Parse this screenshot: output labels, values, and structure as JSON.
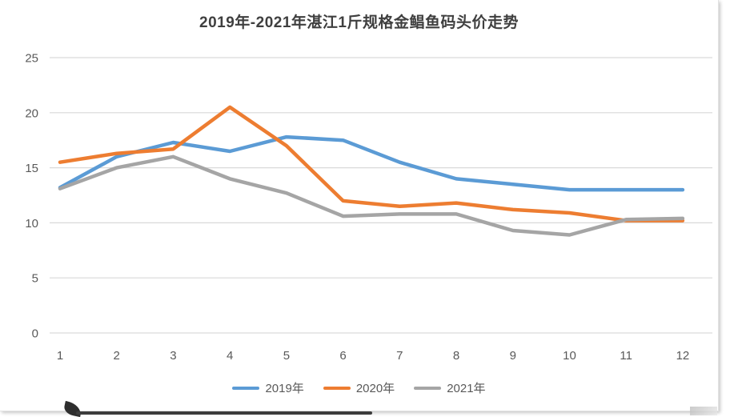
{
  "chart_data": {
    "type": "line",
    "title": "2019年-2021年湛江1斤规格金鲳鱼码头价走势",
    "xlabel": "",
    "ylabel": "",
    "x": [
      "1",
      "2",
      "3",
      "4",
      "5",
      "6",
      "7",
      "8",
      "9",
      "10",
      "11",
      "12"
    ],
    "yticks": [
      "0",
      "5",
      "10",
      "15",
      "20",
      "25"
    ],
    "ylim": [
      0,
      25
    ],
    "grid": "horizontal-only",
    "legend_position": "bottom",
    "series": [
      {
        "name": "2019年",
        "color": "#5B9BD5",
        "values": [
          13.2,
          16,
          17.3,
          16.5,
          17.8,
          17.5,
          15.5,
          14,
          13.5,
          13,
          13,
          13
        ]
      },
      {
        "name": "2020年",
        "color": "#ED7D31",
        "values": [
          15.5,
          16.3,
          16.7,
          20.5,
          17,
          12,
          11.5,
          11.8,
          11.2,
          10.9,
          10.2,
          10.2
        ]
      },
      {
        "name": "2021年",
        "color": "#A5A5A5",
        "values": [
          13.1,
          15,
          16,
          14,
          12.7,
          10.6,
          10.8,
          10.8,
          9.3,
          8.9,
          10.3,
          10.4
        ]
      }
    ]
  },
  "colors": {
    "gridline": "#D9D9D9",
    "axis_text": "#595959",
    "title_text": "#3F3F3F"
  }
}
